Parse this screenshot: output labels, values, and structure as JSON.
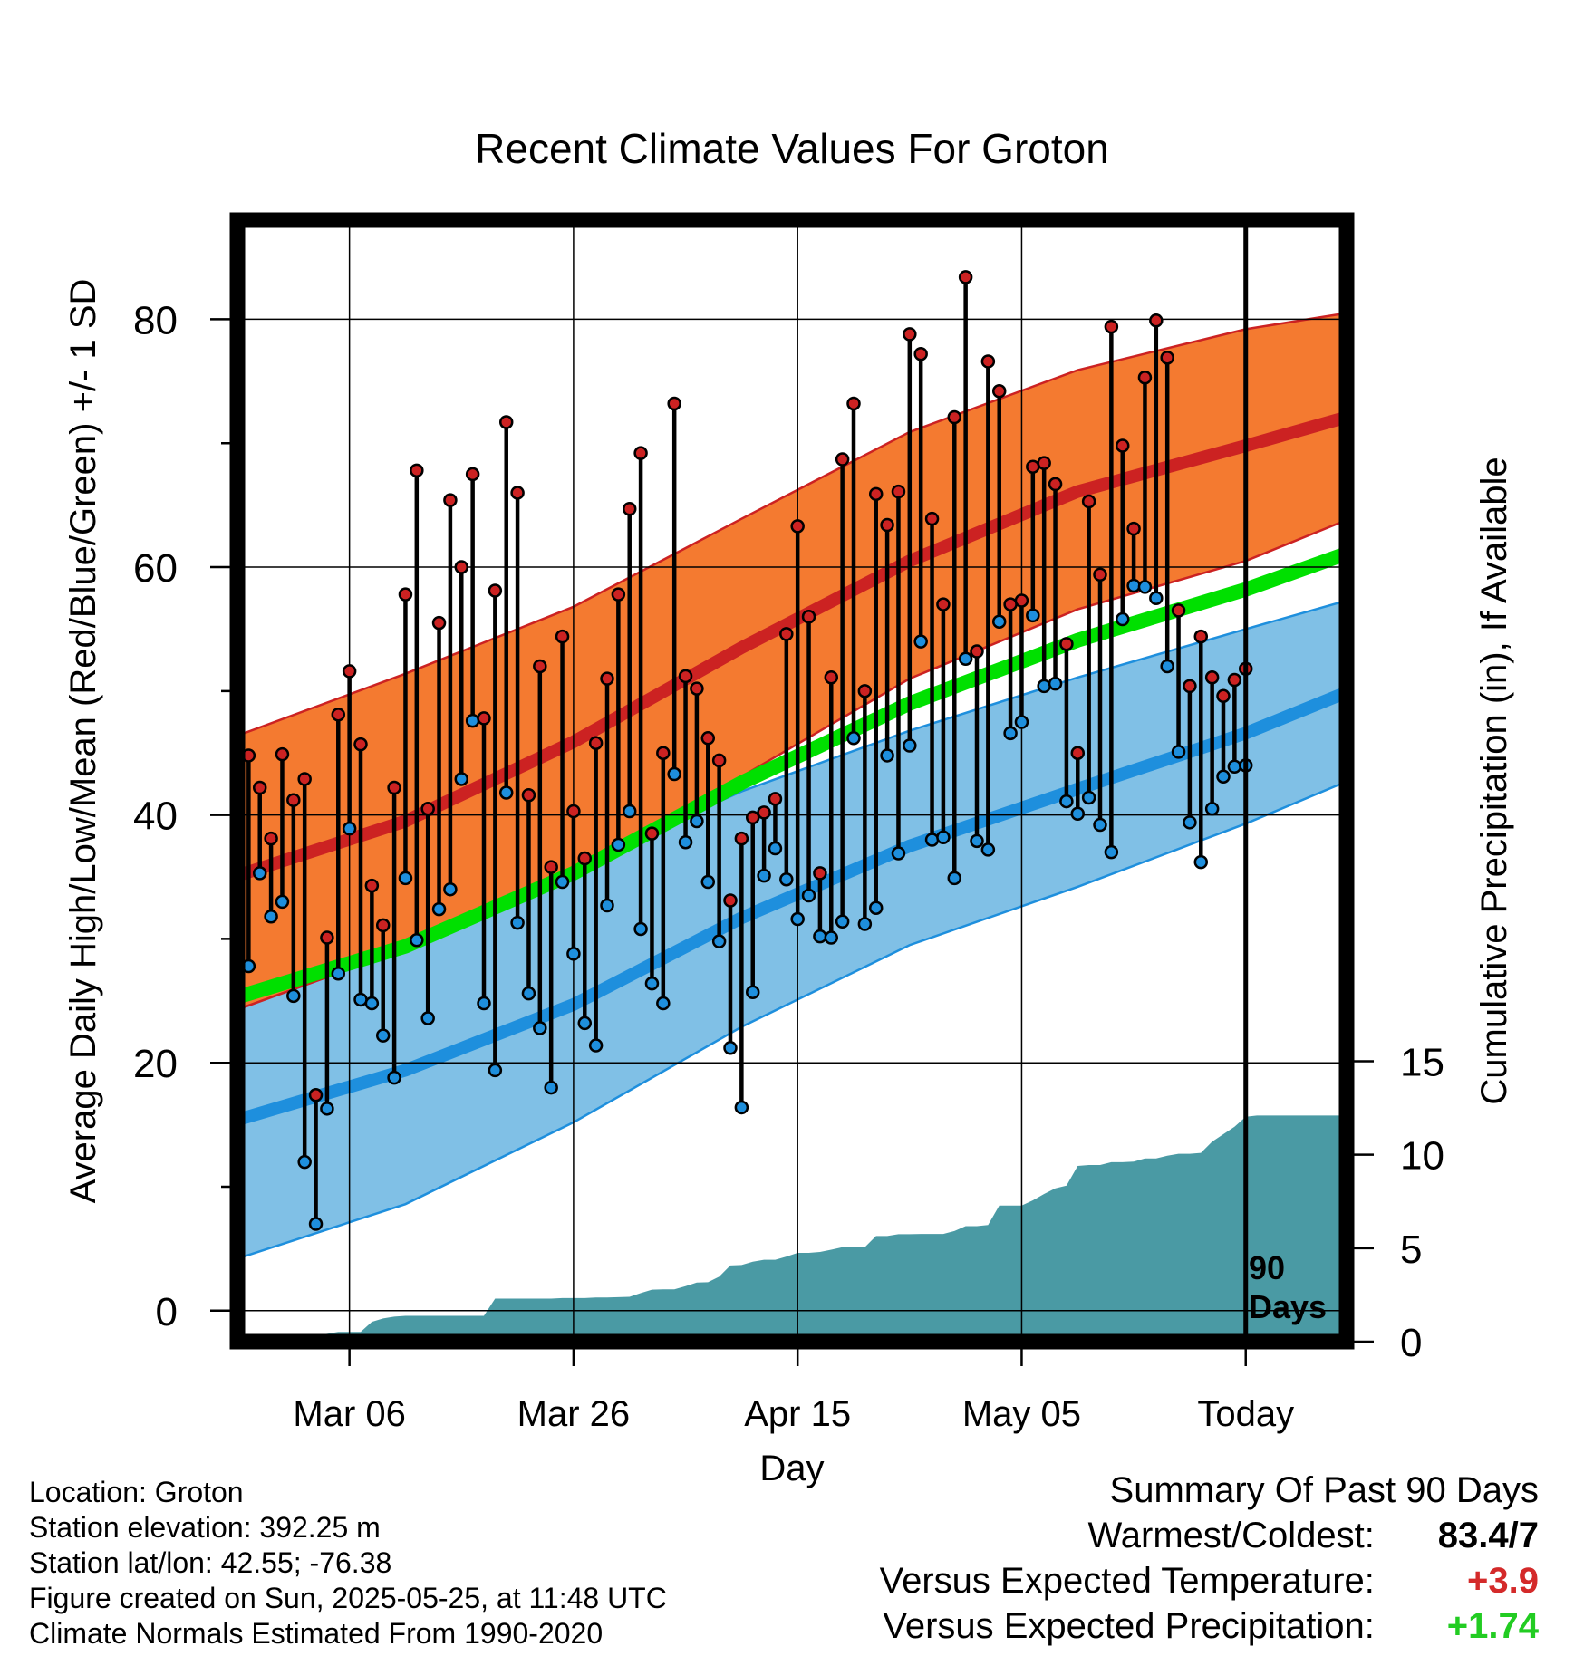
{
  "title": "Recent Climate Values For Groton",
  "footer": {
    "location": "Location: Groton",
    "elevation": "Station elevation: 392.25 m",
    "latlon": "Station lat/lon: 42.55; -76.38",
    "created": "Figure created on Sun, 2025-05-25, at 11:48 UTC",
    "normals": "Climate Normals Estimated From 1990-2020"
  },
  "summary": {
    "heading": "Summary Of Past 90 Days",
    "warmest_label": "Warmest/Coldest:",
    "warmest_value": "83.4/7",
    "temp_label": "Versus Expected Temperature:",
    "temp_value": "+3.9",
    "precip_label": "Versus Expected Precipitation:",
    "precip_value": "+1.74"
  },
  "colors": {
    "high": "#cc2222",
    "low": "#1e8fdd",
    "mean": "#00e000",
    "high_band": "#f47a30",
    "low_band": "#80c0e6",
    "precip": "#4a9aa4"
  },
  "chart_data": {
    "type": "line",
    "xlabel": "Day",
    "ylabel": "Average Daily High/Low/Mean (Red/Blue/Green) +/- 1 SD",
    "y2label": "Cumulative Precipitation (in), If Available",
    "ylim": [
      -2.5,
      88
    ],
    "y2lim": [
      0,
      60
    ],
    "yticks": [
      0,
      20,
      40,
      60,
      80
    ],
    "y2ticks": [
      0,
      5,
      10,
      15
    ],
    "xlim": [
      "2025-02-24",
      "2025-06-03"
    ],
    "xticks": [
      {
        "date": "2025-03-06",
        "label": "Mar 06"
      },
      {
        "date": "2025-03-26",
        "label": "Mar 26"
      },
      {
        "date": "2025-04-15",
        "label": "Apr 15"
      },
      {
        "date": "2025-05-05",
        "label": "May 05"
      },
      {
        "date": "2025-05-25",
        "label": "Today"
      }
    ],
    "today_line": {
      "date": "2025-05-25",
      "label_line1": "90",
      "label_line2": "Days"
    },
    "grid": true,
    "normals": {
      "dates": [
        "2025-02-24",
        "2025-03-11",
        "2025-03-26",
        "2025-04-10",
        "2025-04-25",
        "2025-05-10",
        "2025-05-25",
        "2025-06-03"
      ],
      "high_mean": [
        35.1,
        39.5,
        45.9,
        53.5,
        60.5,
        66.1,
        69.8,
        72.1
      ],
      "high_upper": [
        46.4,
        51.4,
        56.8,
        63.9,
        70.9,
        75.9,
        79.2,
        80.5
      ],
      "high_lower": [
        24.3,
        29.2,
        35.3,
        43.1,
        51.0,
        56.6,
        60.5,
        63.8
      ],
      "low_mean": [
        15.4,
        19.4,
        24.7,
        31.7,
        37.5,
        42.1,
        46.6,
        49.9
      ],
      "low_upper": [
        27.6,
        31.4,
        35.8,
        41.9,
        46.8,
        51.1,
        55.0,
        57.3
      ],
      "low_lower": [
        4.2,
        8.6,
        15.2,
        22.9,
        29.5,
        34.2,
        39.3,
        42.7
      ],
      "mean": [
        25.3,
        29.4,
        35.3,
        42.6,
        49.0,
        54.1,
        58.2,
        61.1
      ]
    },
    "series": [
      {
        "name": "High",
        "values": [
          44.8,
          42.2,
          38.1,
          44.9,
          41.2,
          42.9,
          17.4,
          30.1,
          48.1,
          51.6,
          45.7,
          34.3,
          31.1,
          42.2,
          57.8,
          67.8,
          40.5,
          55.5,
          65.4,
          60.0,
          67.5,
          47.8,
          58.1,
          71.7,
          66.0,
          41.6,
          52.0,
          35.8,
          54.4,
          40.3,
          36.5,
          45.8,
          51.0,
          57.8,
          64.7,
          69.2,
          38.5,
          45.0,
          73.2,
          51.2,
          50.2,
          46.2,
          44.4,
          33.1,
          38.1,
          39.8,
          40.2,
          41.3,
          54.6,
          63.3,
          56.0,
          35.3,
          51.1,
          68.7,
          73.2,
          50.0,
          65.9,
          63.4,
          66.1,
          78.8,
          77.2,
          63.9,
          57.0,
          72.1,
          83.4,
          53.2,
          76.6,
          74.2,
          57.0,
          57.3,
          68.1,
          68.4,
          66.7,
          53.8,
          45.0,
          65.3,
          59.4,
          79.4,
          69.8,
          63.1,
          75.3,
          79.9,
          76.9,
          56.5,
          50.4,
          54.4,
          51.1,
          49.6,
          50.9,
          51.8
        ]
      },
      {
        "name": "Low",
        "values": [
          27.8,
          35.3,
          31.8,
          33.0,
          25.4,
          12.0,
          7.0,
          16.3,
          27.2,
          38.9,
          25.1,
          24.8,
          22.2,
          18.8,
          34.9,
          29.9,
          23.6,
          32.4,
          34.0,
          42.9,
          47.6,
          24.8,
          19.4,
          41.8,
          31.3,
          25.6,
          22.8,
          18.0,
          34.6,
          28.8,
          23.2,
          21.4,
          32.7,
          37.6,
          40.3,
          30.8,
          26.4,
          24.8,
          43.3,
          37.8,
          39.5,
          34.6,
          29.8,
          21.2,
          16.4,
          25.7,
          35.1,
          37.3,
          34.8,
          31.6,
          33.5,
          30.2,
          30.1,
          31.4,
          46.2,
          31.2,
          32.5,
          44.8,
          36.9,
          45.6,
          54.0,
          38.0,
          38.2,
          34.9,
          52.6,
          37.9,
          37.2,
          55.6,
          46.6,
          47.5,
          56.1,
          50.4,
          50.6,
          41.1,
          40.1,
          41.4,
          39.2,
          37.0,
          55.8,
          58.5,
          58.4,
          57.5,
          52.0,
          45.1,
          39.4,
          36.2,
          40.5,
          43.1,
          43.9,
          44.0
        ]
      },
      {
        "name": "Cumulative Precipitation",
        "precip": [
          0.0,
          0.0,
          0.18,
          0.18,
          0.24,
          0.34,
          0.34,
          0.42,
          0.52,
          0.52,
          0.52,
          1.06,
          1.24,
          1.34,
          1.38,
          1.38,
          1.38,
          1.38,
          1.38,
          1.38,
          1.38,
          1.38,
          2.3,
          2.3,
          2.3,
          2.3,
          2.3,
          2.3,
          2.33,
          2.33,
          2.33,
          2.36,
          2.36,
          2.38,
          2.4,
          2.6,
          2.78,
          2.8,
          2.8,
          2.97,
          3.16,
          3.18,
          3.48,
          4.08,
          4.1,
          4.28,
          4.38,
          4.38,
          4.55,
          4.75,
          4.75,
          4.8,
          4.92,
          5.05,
          5.05,
          5.05,
          5.65,
          5.65,
          5.75,
          5.75,
          5.76,
          5.76,
          5.76,
          5.92,
          6.18,
          6.18,
          6.24,
          7.28,
          7.28,
          7.28,
          7.56,
          7.9,
          8.2,
          8.35,
          9.4,
          9.45,
          9.45,
          9.6,
          9.6,
          9.63,
          9.8,
          9.8,
          9.95,
          10.05,
          10.05,
          10.1,
          10.7,
          11.1,
          11.5,
          12.03,
          12.1,
          12.1,
          12.1,
          12.1,
          12.1,
          12.1,
          12.1,
          12.1,
          12.1,
          12.1
        ]
      }
    ]
  }
}
